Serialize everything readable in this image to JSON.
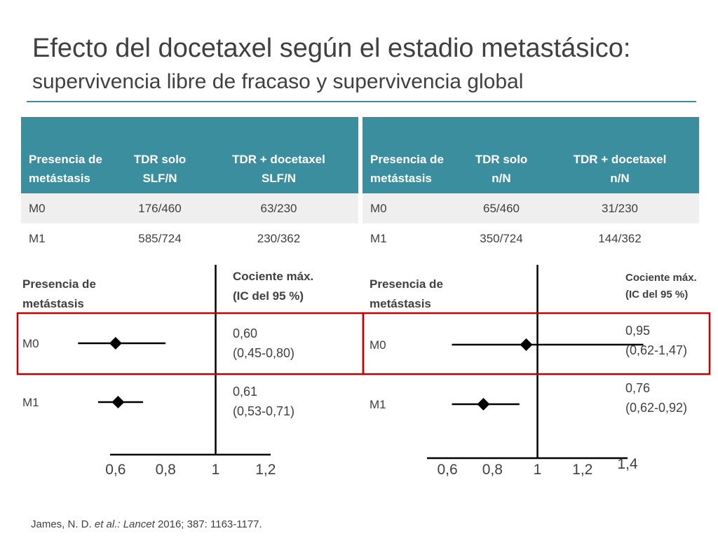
{
  "title": "Efecto del docetaxel según el estadio metastásico:",
  "subtitle": "supervivencia libre de fracaso y supervivencia global",
  "colors": {
    "header_bg": "#3a8e9e",
    "rule": "#3a8e9e",
    "highlight_box": "#c00000",
    "text": "#404040",
    "stripe": "#efefef"
  },
  "tables": [
    {
      "headers": [
        [
          "Presencia de",
          "metástasis"
        ],
        [
          "TDR solo",
          "SLF/N"
        ],
        [
          "TDR + docetaxel",
          "SLF/N"
        ]
      ],
      "rows": [
        [
          "M0",
          "176/460",
          "63/230"
        ],
        [
          "M1",
          "585/724",
          "230/362"
        ]
      ]
    },
    {
      "headers": [
        [
          "Presencia de",
          "metástasis"
        ],
        [
          "TDR solo",
          "n/N"
        ],
        [
          "TDR + docetaxel",
          "n/N"
        ]
      ],
      "rows": [
        [
          "M0",
          "65/460",
          "31/230"
        ],
        [
          "M1",
          "350/724",
          "144/362"
        ]
      ]
    }
  ],
  "chart_data": [
    {
      "type": "forest",
      "row_header": [
        "Presencia de",
        "metástasis"
      ],
      "value_header": [
        "Cociente máx.",
        "(IC del 95 %)"
      ],
      "x_ticks": [
        "0,6",
        "0,8",
        "1",
        "1,2"
      ],
      "xlim": [
        0.55,
        1.22
      ],
      "reference_line": 1,
      "rows": [
        {
          "label": "M0",
          "estimate": 0.6,
          "ci": [
            0.45,
            0.8
          ],
          "text": [
            "0,60",
            "(0,45-0,80)"
          ],
          "highlighted": true
        },
        {
          "label": "M1",
          "estimate": 0.61,
          "ci": [
            0.53,
            0.71
          ],
          "text": [
            "0,61",
            "(0,53-0,71)"
          ],
          "highlighted": false
        }
      ]
    },
    {
      "type": "forest",
      "row_header": [
        "Presencia de",
        "metástasis"
      ],
      "value_header": [
        "Cociente máx.",
        "(IC del 95 %)"
      ],
      "x_ticks": [
        "0,6",
        "0,8",
        "1",
        "1,2",
        "1,4"
      ],
      "xlim": [
        0.55,
        1.4
      ],
      "reference_line": 1,
      "rows": [
        {
          "label": "M0",
          "estimate": 0.95,
          "ci": [
            0.62,
            1.47
          ],
          "text": [
            "0,95",
            "(0,62-1,47)"
          ],
          "highlighted": true
        },
        {
          "label": "M1",
          "estimate": 0.76,
          "ci": [
            0.62,
            0.92
          ],
          "text": [
            "0,76",
            "(0,62-0,92)"
          ],
          "highlighted": false
        }
      ]
    }
  ],
  "citation": {
    "authors": "James, N. D.",
    "etal": "et al.:",
    "journal": "Lancet",
    "details": "2016; 387: 1163-1177."
  }
}
